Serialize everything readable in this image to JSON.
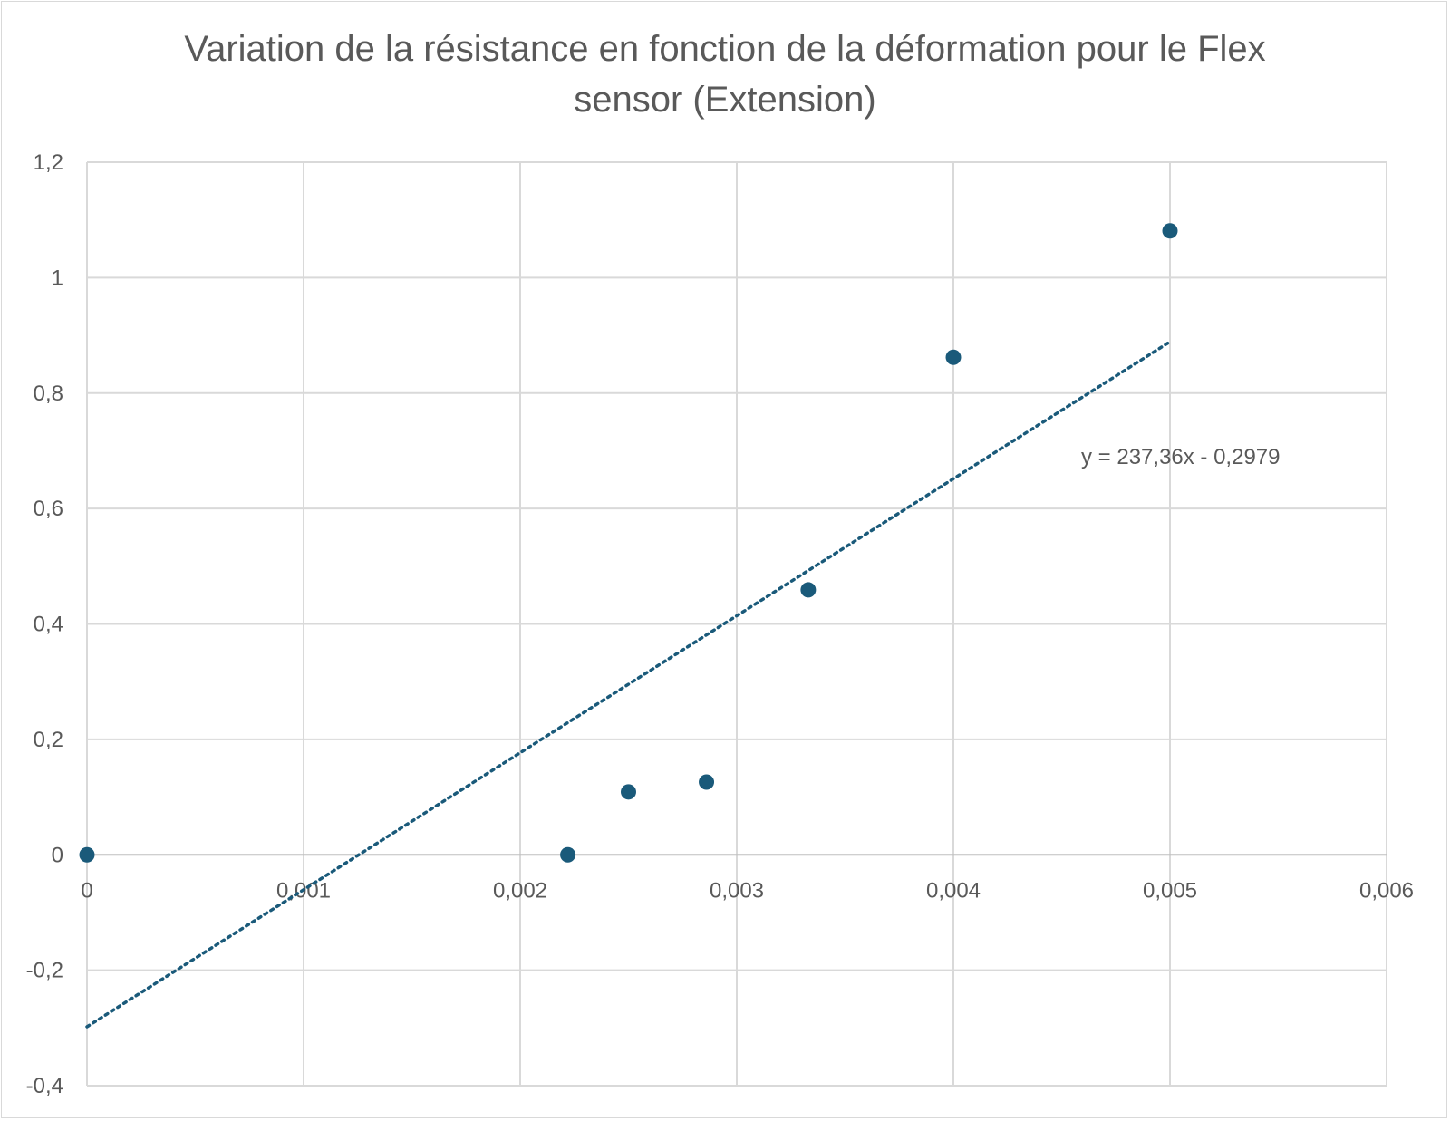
{
  "chart_data": {
    "type": "scatter",
    "title_lines": [
      "Variation de la résistance en fonction de la déformation pour le Flex",
      "sensor (Extension)"
    ],
    "xlabel": "",
    "ylabel": "",
    "xlim": [
      0,
      0.006
    ],
    "ylim": [
      -0.4,
      1.2
    ],
    "x_ticks": [
      0,
      0.001,
      0.002,
      0.003,
      0.004,
      0.005,
      0.006
    ],
    "x_tick_labels": [
      "0",
      "0,001",
      "0,002",
      "0,003",
      "0,004",
      "0,005",
      "0,006"
    ],
    "y_ticks": [
      -0.4,
      -0.2,
      0,
      0.2,
      0.4,
      0.6,
      0.8,
      1.0,
      1.2
    ],
    "y_tick_labels": [
      "-0,4",
      "-0,2",
      "0",
      "0,2",
      "0,4",
      "0,6",
      "0,8",
      "1",
      "1,2"
    ],
    "grid": true,
    "series": [
      {
        "points": [
          {
            "x": 0,
            "y": 0
          },
          {
            "x": 0.00222,
            "y": 0
          },
          {
            "x": 0.0025,
            "y": 0.109
          },
          {
            "x": 0.00286,
            "y": 0.126
          },
          {
            "x": 0.00333,
            "y": 0.459
          },
          {
            "x": 0.004,
            "y": 0.862
          },
          {
            "x": 0.005,
            "y": 1.081
          }
        ],
        "color": "#1a5a7a"
      }
    ],
    "trendline": {
      "type": "linear",
      "slope": 237.36,
      "intercept": -0.2979,
      "x_range": [
        0,
        0.005
      ],
      "style": "dotted",
      "color": "#1a5a7a",
      "equation_label": "y = 237,36x - 0,2979",
      "label_anchor": {
        "x": 0.00459,
        "y": 0.69
      }
    }
  }
}
